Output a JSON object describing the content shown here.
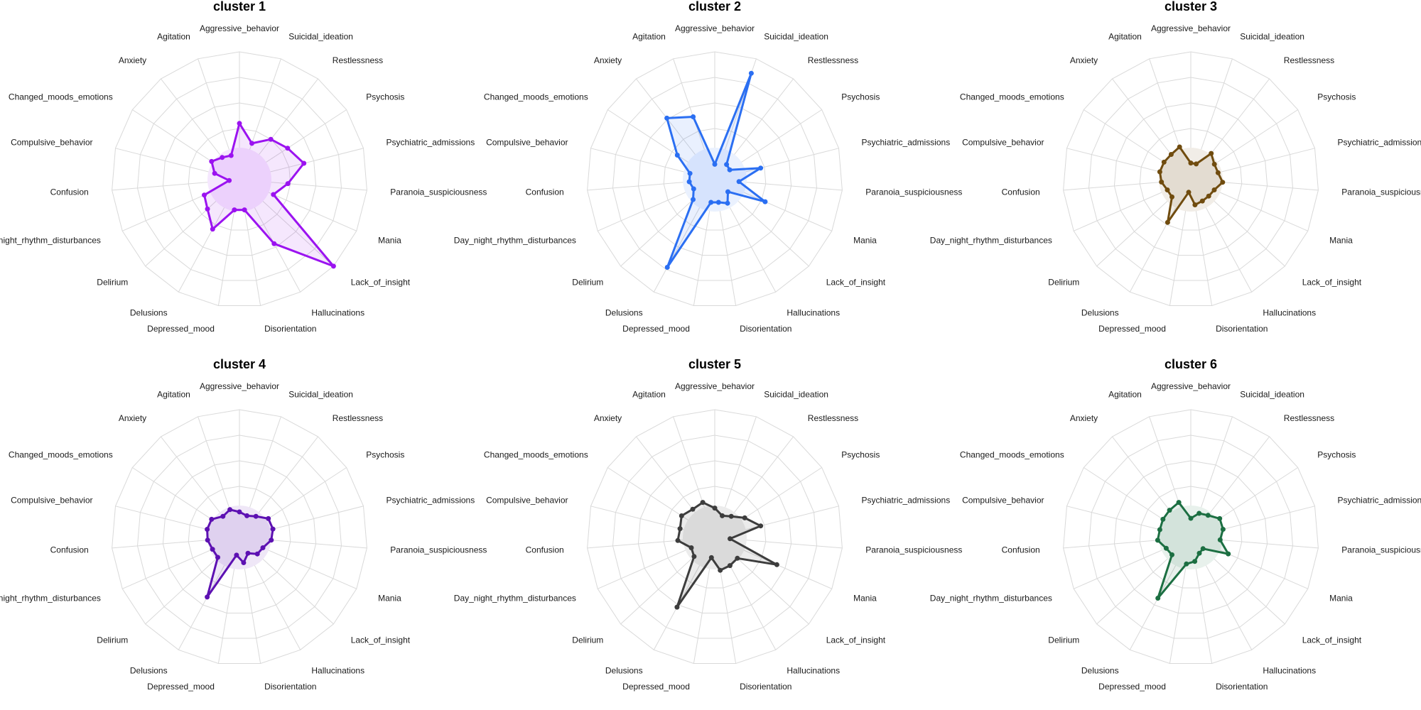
{
  "chart_data": [
    {
      "type": "radar",
      "title": "cluster 1",
      "color": "#9b13f0",
      "categories": [
        "Aggressive_behavior",
        "Suicidal_ideation",
        "Restlessness",
        "Psychosis",
        "Psychiatric_admissions",
        "Paranoia_suspiciousness",
        "Mania",
        "Lack_of_insight",
        "Hallucinations",
        "Disorientation",
        "Depressed_mood",
        "Delusions",
        "Delirium",
        "Day_night_rhythm_disturbances",
        "Confusion",
        "Compulsive_behavior",
        "Changed_moods_emotions",
        "Anxiety",
        "Agitation"
      ],
      "values": [
        0.44,
        0.3,
        0.4,
        0.45,
        0.52,
        0.38,
        0.29,
        1.0,
        0.57,
        0.24,
        0.24,
        0.44,
        0.34,
        0.3,
        0.08,
        0.2,
        0.26,
        0.22,
        0.2
      ],
      "rlim": [
        0,
        1
      ],
      "grid_rings": 5
    },
    {
      "type": "radar",
      "title": "cluster 2",
      "color": "#2b6ff2",
      "categories": [
        "Aggressive_behavior",
        "Suicidal_ideation",
        "Restlessness",
        "Psychosis",
        "Psychiatric_admissions",
        "Paranoia_suspiciousness",
        "Mania",
        "Lack_of_insight",
        "Hallucinations",
        "Disorientation",
        "Depressed_mood",
        "Delusions",
        "Delirium",
        "Day_night_rhythm_disturbances",
        "Confusion",
        "Compulsive_behavior",
        "Changed_moods_emotions",
        "Anxiety",
        "Agitation"
      ],
      "values": [
        0.12,
        0.88,
        0.15,
        0.14,
        0.37,
        0.19,
        0.43,
        0.14,
        0.21,
        0.18,
        0.18,
        0.78,
        0.23,
        0.18,
        0.2,
        0.2,
        0.35,
        0.61,
        0.52
      ],
      "rlim": [
        0,
        1
      ],
      "grid_rings": 5
    },
    {
      "type": "radar",
      "title": "cluster 3",
      "color": "#704c0f",
      "categories": [
        "Aggressive_behavior",
        "Suicidal_ideation",
        "Restlessness",
        "Psychosis",
        "Psychiatric_admissions",
        "Paranoia_suspiciousness",
        "Mania",
        "Lack_of_insight",
        "Hallucinations",
        "Disorientation",
        "Depressed_mood",
        "Delusions",
        "Delirium",
        "Day_night_rhythm_disturbances",
        "Confusion",
        "Compulsive_behavior",
        "Changed_moods_emotions",
        "Anxiety",
        "Agitation"
      ],
      "values": [
        0.13,
        0.13,
        0.26,
        0.22,
        0.22,
        0.25,
        0.2,
        0.19,
        0.19,
        0.2,
        0.1,
        0.38,
        0.2,
        0.2,
        0.23,
        0.25,
        0.25,
        0.25,
        0.27
      ],
      "rlim": [
        0,
        1
      ],
      "grid_rings": 5
    },
    {
      "type": "radar",
      "title": "cluster 4",
      "color": "#5d11b2",
      "categories": [
        "Aggressive_behavior",
        "Suicidal_ideation",
        "Restlessness",
        "Psychosis",
        "Psychiatric_admissions",
        "Paranoia_suspiciousness",
        "Mania",
        "Lack_of_insight",
        "Hallucinations",
        "Disorientation",
        "Depressed_mood",
        "Delusions",
        "Delirium",
        "Day_night_rhythm_disturbances",
        "Confusion",
        "Compulsive_behavior",
        "Changed_moods_emotions",
        "Anxiety",
        "Agitation"
      ],
      "values": [
        0.2,
        0.18,
        0.21,
        0.27,
        0.27,
        0.25,
        0.2,
        0.19,
        0.14,
        0.2,
        0.14,
        0.53,
        0.23,
        0.23,
        0.25,
        0.26,
        0.26,
        0.21,
        0.23
      ],
      "rlim": [
        0,
        1
      ],
      "grid_rings": 5
    },
    {
      "type": "radar",
      "title": "cluster 5",
      "color": "#3d3d3d",
      "categories": [
        "Aggressive_behavior",
        "Suicidal_ideation",
        "Restlessness",
        "Psychosis",
        "Psychiatric_admissions",
        "Paranoia_suspiciousness",
        "Mania",
        "Lack_of_insight",
        "Hallucinations",
        "Disorientation",
        "Depressed_mood",
        "Delusions",
        "Delirium",
        "Day_night_rhythm_disturbances",
        "Confusion",
        "Compulsive_behavior",
        "Changed_moods_emotions",
        "Anxiety",
        "Agitation"
      ],
      "values": [
        0.23,
        0.18,
        0.21,
        0.28,
        0.37,
        0.12,
        0.53,
        0.24,
        0.25,
        0.26,
        0.16,
        0.62,
        0.22,
        0.2,
        0.29,
        0.28,
        0.31,
        0.28,
        0.29
      ],
      "rlim": [
        0,
        1
      ],
      "grid_rings": 5
    },
    {
      "type": "radar",
      "title": "cluster 6",
      "color": "#1c6f42",
      "categories": [
        "Aggressive_behavior",
        "Suicidal_ideation",
        "Restlessness",
        "Psychosis",
        "Psychiatric_admissions",
        "Paranoia_suspiciousness",
        "Mania",
        "Lack_of_insight",
        "Hallucinations",
        "Disorientation",
        "Depressed_mood",
        "Delusions",
        "Delirium",
        "Day_night_rhythm_disturbances",
        "Confusion",
        "Compulsive_behavior",
        "Changed_moods_emotions",
        "Anxiety",
        "Agitation"
      ],
      "values": [
        0.15,
        0.2,
        0.22,
        0.27,
        0.26,
        0.23,
        0.32,
        0.13,
        0.14,
        0.19,
        0.21,
        0.54,
        0.2,
        0.21,
        0.26,
        0.25,
        0.26,
        0.27,
        0.29
      ],
      "rlim": [
        0,
        1
      ],
      "grid_rings": 5
    }
  ]
}
